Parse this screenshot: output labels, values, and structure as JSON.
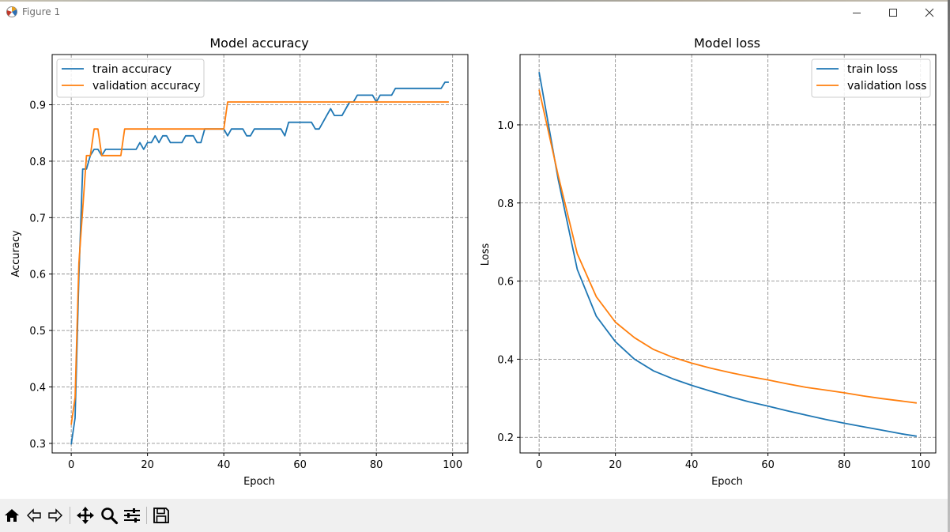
{
  "window": {
    "title": "Figure 1"
  },
  "toolbar": {
    "tools": [
      "home-icon",
      "back-icon",
      "forward-icon",
      "pan-icon",
      "zoom-icon",
      "configure-subplots-icon",
      "save-icon"
    ]
  },
  "colors": {
    "train": "#1f77b4",
    "validation": "#ff7f0e",
    "grid": "#808080"
  },
  "chart_data": [
    {
      "type": "line",
      "title": "Model accuracy",
      "xlabel": "Epoch",
      "ylabel": "Accuracy",
      "xlim": [
        -5,
        104
      ],
      "ylim": [
        0.283,
        0.989
      ],
      "xticks": [
        0,
        20,
        40,
        60,
        80,
        100
      ],
      "yticks": [
        0.3,
        0.4,
        0.5,
        0.6,
        0.7,
        0.8,
        0.9
      ],
      "xtick_labels": [
        "0",
        "20",
        "40",
        "60",
        "80",
        "100"
      ],
      "ytick_labels": [
        "0.3",
        "0.4",
        "0.5",
        "0.6",
        "0.7",
        "0.8",
        "0.9"
      ],
      "grid": true,
      "legend": "upper-left",
      "series": [
        {
          "name": "train accuracy",
          "color": "#1f77b4",
          "x": [
            0,
            1,
            2,
            3,
            4,
            5,
            6,
            7,
            8,
            9,
            10,
            11,
            12,
            13,
            14,
            15,
            16,
            17,
            18,
            19,
            20,
            21,
            22,
            23,
            24,
            25,
            26,
            27,
            28,
            29,
            30,
            31,
            32,
            33,
            34,
            35,
            36,
            37,
            38,
            39,
            40,
            41,
            42,
            43,
            44,
            45,
            46,
            47,
            48,
            49,
            50,
            51,
            52,
            53,
            54,
            55,
            56,
            57,
            58,
            59,
            60,
            61,
            62,
            63,
            64,
            65,
            66,
            67,
            68,
            69,
            70,
            71,
            72,
            73,
            74,
            75,
            76,
            77,
            78,
            79,
            80,
            81,
            82,
            83,
            84,
            85,
            86,
            87,
            88,
            89,
            90,
            91,
            92,
            93,
            94,
            95,
            96,
            97,
            98,
            99
          ],
          "y": [
            0.298,
            0.345,
            0.595,
            0.786,
            0.786,
            0.81,
            0.821,
            0.821,
            0.81,
            0.821,
            0.821,
            0.821,
            0.821,
            0.821,
            0.821,
            0.821,
            0.821,
            0.821,
            0.833,
            0.821,
            0.833,
            0.833,
            0.845,
            0.833,
            0.845,
            0.845,
            0.833,
            0.833,
            0.833,
            0.833,
            0.845,
            0.845,
            0.845,
            0.833,
            0.833,
            0.857,
            0.857,
            0.857,
            0.857,
            0.857,
            0.857,
            0.845,
            0.857,
            0.857,
            0.857,
            0.857,
            0.845,
            0.845,
            0.857,
            0.857,
            0.857,
            0.857,
            0.857,
            0.857,
            0.857,
            0.857,
            0.845,
            0.869,
            0.869,
            0.869,
            0.869,
            0.869,
            0.869,
            0.869,
            0.857,
            0.857,
            0.869,
            0.881,
            0.893,
            0.881,
            0.881,
            0.881,
            0.893,
            0.905,
            0.905,
            0.917,
            0.917,
            0.917,
            0.917,
            0.917,
            0.905,
            0.917,
            0.917,
            0.917,
            0.917,
            0.929,
            0.929,
            0.929,
            0.929,
            0.929,
            0.929,
            0.929,
            0.929,
            0.929,
            0.929,
            0.929,
            0.929,
            0.929,
            0.94,
            0.94
          ]
        },
        {
          "name": "validation accuracy",
          "color": "#ff7f0e",
          "x": [
            0,
            1,
            2,
            3,
            4,
            5,
            6,
            7,
            8,
            9,
            10,
            11,
            12,
            13,
            14,
            15,
            16,
            17,
            18,
            19,
            20,
            21,
            22,
            23,
            24,
            25,
            26,
            27,
            28,
            29,
            30,
            31,
            32,
            33,
            34,
            35,
            36,
            37,
            38,
            39,
            40,
            41,
            42,
            43,
            44,
            45,
            46,
            47,
            48,
            49,
            50,
            51,
            52,
            53,
            54,
            55,
            56,
            57,
            58,
            59,
            60,
            61,
            62,
            63,
            64,
            65,
            66,
            67,
            68,
            69,
            70,
            71,
            72,
            73,
            74,
            75,
            76,
            77,
            78,
            79,
            80,
            81,
            82,
            83,
            84,
            85,
            86,
            87,
            88,
            89,
            90,
            91,
            92,
            93,
            94,
            95,
            96,
            97,
            98,
            99
          ],
          "y": [
            0.333,
            0.381,
            0.619,
            0.714,
            0.81,
            0.81,
            0.857,
            0.857,
            0.81,
            0.81,
            0.81,
            0.81,
            0.81,
            0.81,
            0.857,
            0.857,
            0.857,
            0.857,
            0.857,
            0.857,
            0.857,
            0.857,
            0.857,
            0.857,
            0.857,
            0.857,
            0.857,
            0.857,
            0.857,
            0.857,
            0.857,
            0.857,
            0.857,
            0.857,
            0.857,
            0.857,
            0.857,
            0.857,
            0.857,
            0.857,
            0.857,
            0.905,
            0.905,
            0.905,
            0.905,
            0.905,
            0.905,
            0.905,
            0.905,
            0.905,
            0.905,
            0.905,
            0.905,
            0.905,
            0.905,
            0.905,
            0.905,
            0.905,
            0.905,
            0.905,
            0.905,
            0.905,
            0.905,
            0.905,
            0.905,
            0.905,
            0.905,
            0.905,
            0.905,
            0.905,
            0.905,
            0.905,
            0.905,
            0.905,
            0.905,
            0.905,
            0.905,
            0.905,
            0.905,
            0.905,
            0.905,
            0.905,
            0.905,
            0.905,
            0.905,
            0.905,
            0.905,
            0.905,
            0.905,
            0.905,
            0.905,
            0.905,
            0.905,
            0.905,
            0.905,
            0.905,
            0.905,
            0.905,
            0.905,
            0.905
          ]
        }
      ]
    },
    {
      "type": "line",
      "title": "Model loss",
      "xlabel": "Epoch",
      "ylabel": "Loss",
      "xlim": [
        -5,
        104
      ],
      "ylim": [
        0.16,
        1.18
      ],
      "xticks": [
        0,
        20,
        40,
        60,
        80,
        100
      ],
      "yticks": [
        0.2,
        0.4,
        0.6,
        0.8,
        1.0
      ],
      "xtick_labels": [
        "0",
        "20",
        "40",
        "60",
        "80",
        "100"
      ],
      "ytick_labels": [
        "0.2",
        "0.4",
        "0.6",
        "0.8",
        "1.0"
      ],
      "grid": true,
      "legend": "upper-right",
      "series": [
        {
          "name": "train loss",
          "color": "#1f77b4",
          "x": [
            0,
            5,
            10,
            15,
            20,
            25,
            30,
            35,
            40,
            45,
            50,
            55,
            60,
            65,
            70,
            75,
            80,
            85,
            90,
            95,
            99
          ],
          "y": [
            1.135,
            0.86,
            0.63,
            0.51,
            0.445,
            0.4,
            0.37,
            0.35,
            0.333,
            0.318,
            0.304,
            0.291,
            0.28,
            0.268,
            0.257,
            0.246,
            0.236,
            0.227,
            0.218,
            0.209,
            0.203
          ]
        },
        {
          "name": "validation loss",
          "color": "#ff7f0e",
          "x": [
            0,
            5,
            10,
            15,
            20,
            25,
            30,
            35,
            40,
            45,
            50,
            55,
            60,
            65,
            70,
            75,
            80,
            85,
            90,
            95,
            99
          ],
          "y": [
            1.09,
            0.87,
            0.67,
            0.56,
            0.495,
            0.455,
            0.425,
            0.405,
            0.39,
            0.377,
            0.366,
            0.356,
            0.347,
            0.337,
            0.328,
            0.321,
            0.314,
            0.306,
            0.299,
            0.293,
            0.288
          ]
        }
      ]
    }
  ]
}
